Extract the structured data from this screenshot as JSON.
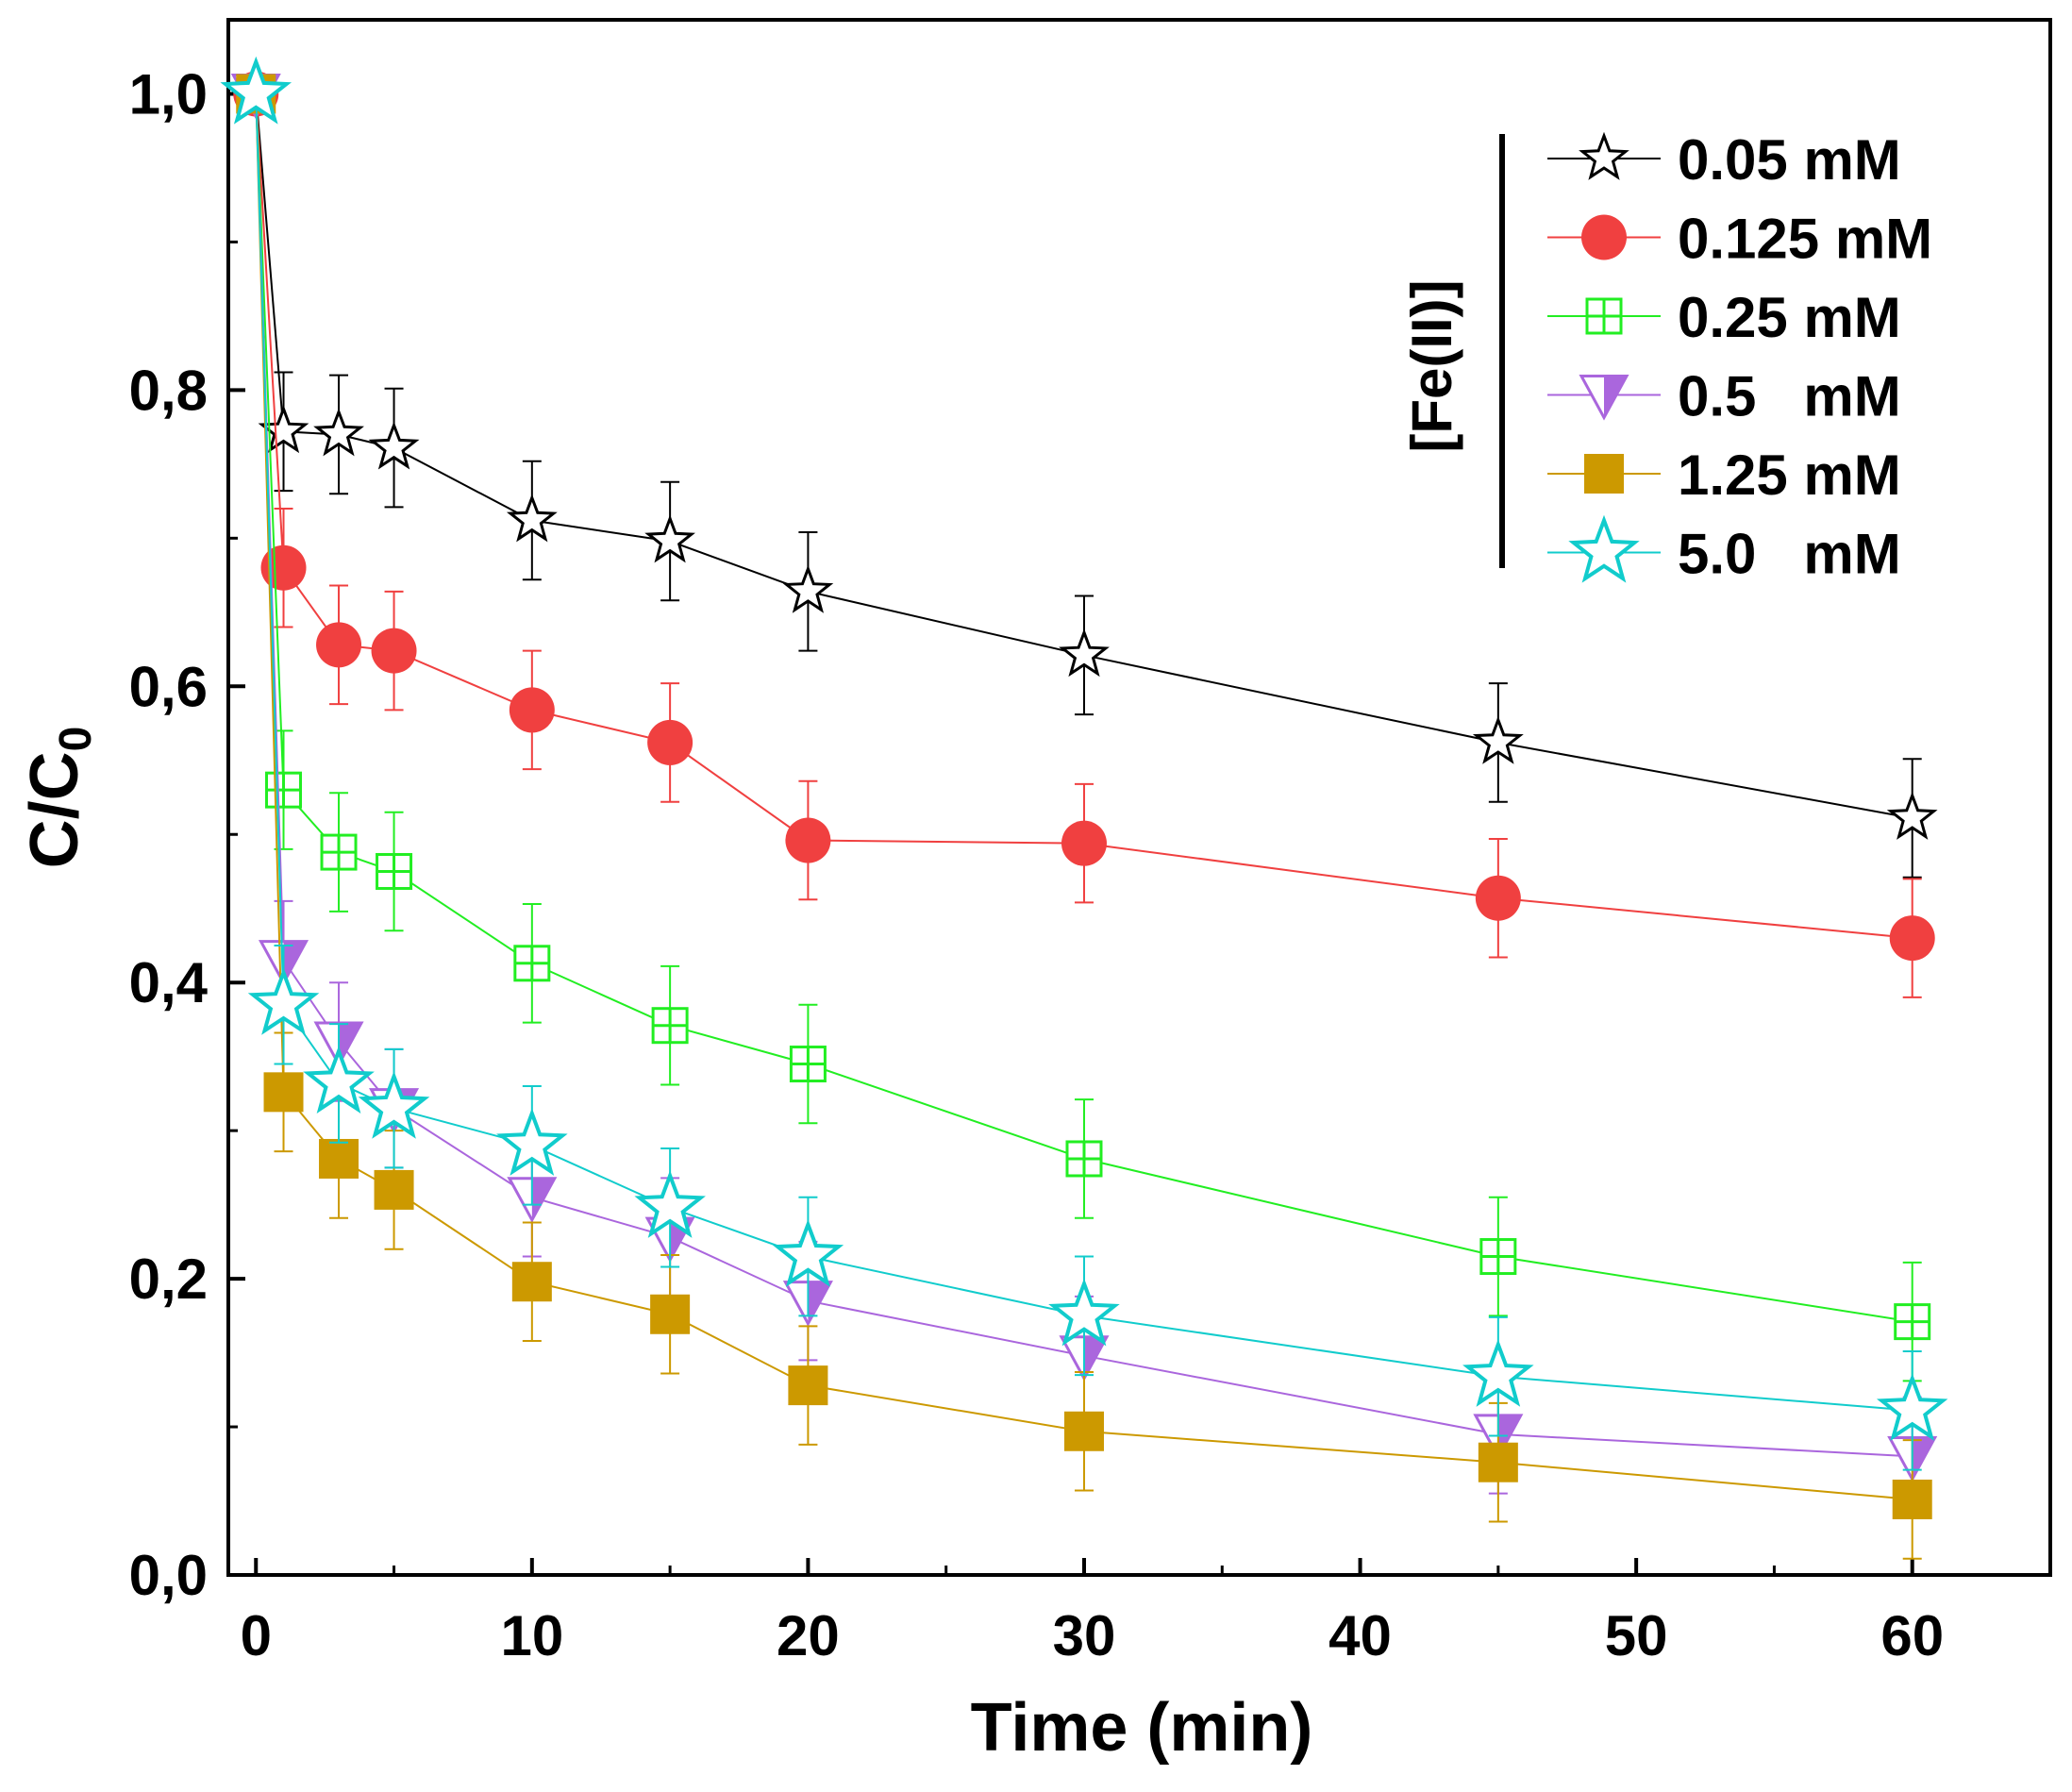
{
  "chart_data": {
    "type": "line",
    "title": "",
    "xlabel": "Time (min)",
    "ylabel": "C/C",
    "ylabel_subscript": "0",
    "xlim": [
      -1,
      65
    ],
    "ylim": [
      0,
      1.05
    ],
    "xticks": [
      0,
      10,
      20,
      30,
      40,
      50,
      60
    ],
    "xtick_labels": [
      "0",
      "10",
      "20",
      "30",
      "40",
      "50",
      "60"
    ],
    "yticks": [
      0,
      0.2,
      0.4,
      0.6,
      0.8,
      1.0
    ],
    "ytick_labels": [
      "0,0",
      "0,2",
      "0,4",
      "0,6",
      "0,8",
      "1,0"
    ],
    "grid": false,
    "legend_title": "[Fe(II)]",
    "legend_position": "top-right",
    "x": [
      0,
      1,
      3,
      5,
      10,
      15,
      20,
      30,
      45,
      60
    ],
    "error": 0.04,
    "series": [
      {
        "name": "0.05 mM",
        "color": "#000000",
        "marker": "star-open-small",
        "values": [
          1.0,
          0.772,
          0.77,
          0.761,
          0.712,
          0.698,
          0.664,
          0.621,
          0.562,
          0.511
        ]
      },
      {
        "name": "0.125 mM",
        "color": "#f04040",
        "marker": "circle-filled",
        "values": [
          1.0,
          0.68,
          0.628,
          0.624,
          0.584,
          0.562,
          0.496,
          0.494,
          0.457,
          0.43
        ]
      },
      {
        "name": "0.25 mM",
        "color": "#22ee22",
        "marker": "square-plus",
        "values": [
          1.0,
          0.53,
          0.488,
          0.475,
          0.413,
          0.371,
          0.345,
          0.281,
          0.215,
          0.171
        ]
      },
      {
        "name": "0.5   mM",
        "color": "#aa66dd",
        "marker": "triangle-down-half",
        "values": [
          1.0,
          0.415,
          0.36,
          0.315,
          0.255,
          0.228,
          0.185,
          0.148,
          0.095,
          0.08
        ]
      },
      {
        "name": "1.25 mM",
        "color": "#cc9900",
        "marker": "square-filled",
        "values": [
          1.0,
          0.326,
          0.281,
          0.26,
          0.198,
          0.176,
          0.128,
          0.097,
          0.076,
          0.051
        ]
      },
      {
        "name": "5.0   mM",
        "color": "#11cccc",
        "marker": "star-open-large",
        "values": [
          1.0,
          0.385,
          0.332,
          0.315,
          0.29,
          0.248,
          0.215,
          0.175,
          0.134,
          0.111
        ]
      }
    ]
  }
}
